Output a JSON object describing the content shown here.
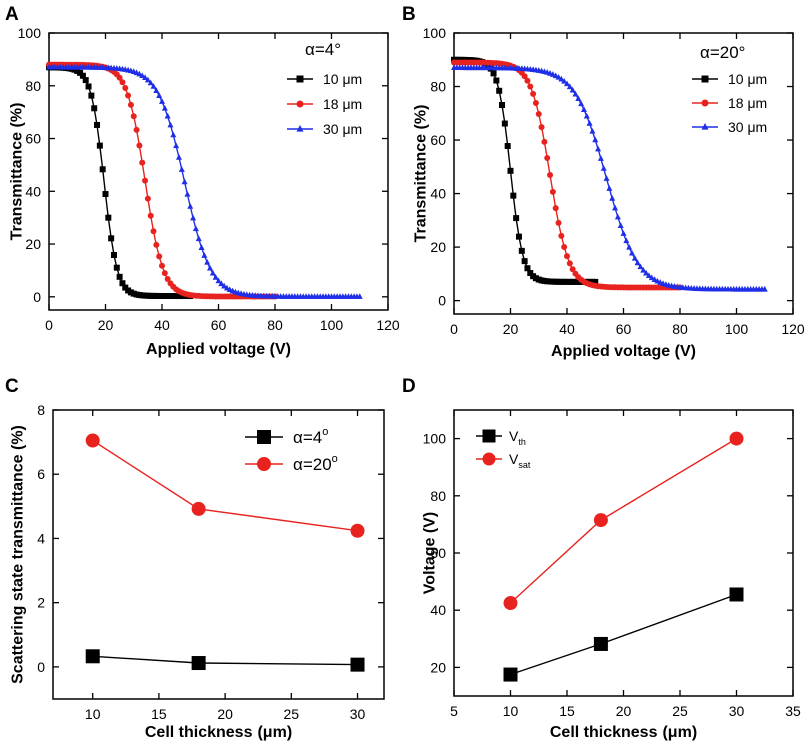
{
  "chart_data": [
    {
      "type": "line",
      "panel": "A",
      "annotation": "α=4°",
      "xlabel": "Applied voltage (V)",
      "ylabel": "Transmittance (%)",
      "xlim": [
        0,
        120
      ],
      "ylim": [
        -5,
        100
      ],
      "xticks": [
        0,
        20,
        40,
        60,
        80,
        100,
        120
      ],
      "yticks": [
        0,
        20,
        40,
        60,
        80,
        100
      ],
      "legend_position": "top-right",
      "series": [
        {
          "name": "10 μm",
          "color": "#000000",
          "marker": "square",
          "Tmax": 87,
          "Tmin": 0.3,
          "V50": 19.5,
          "slope": 2.3,
          "vstart": 0,
          "vend": 50
        },
        {
          "name": "18 μm",
          "color": "#e8231f",
          "marker": "circle",
          "Tmax": 88,
          "Tmin": 0.1,
          "V50": 34,
          "slope": 3.2,
          "vstart": 0,
          "vend": 80
        },
        {
          "name": "30 μm",
          "color": "#1f2fe8",
          "marker": "triangle",
          "Tmax": 87,
          "Tmin": 0.05,
          "V50": 48,
          "slope": 4.6,
          "vstart": 0,
          "vend": 110
        }
      ]
    },
    {
      "type": "line",
      "panel": "B",
      "annotation": "α=20°",
      "xlabel": "Applied voltage (V)",
      "ylabel": "Transmittance (%)",
      "xlim": [
        0,
        120
      ],
      "ylim": [
        -5,
        100
      ],
      "xticks": [
        0,
        20,
        40,
        60,
        80,
        100,
        120
      ],
      "yticks": [
        0,
        20,
        40,
        60,
        80,
        100
      ],
      "legend_position": "top-right",
      "series": [
        {
          "name": "10 μm",
          "color": "#000000",
          "marker": "square",
          "Tmax": 90,
          "Tmin": 7,
          "V50": 20,
          "slope": 2.2,
          "vstart": 0,
          "vend": 50
        },
        {
          "name": "18 μm",
          "color": "#e8231f",
          "marker": "circle",
          "Tmax": 89,
          "Tmin": 4.9,
          "V50": 34,
          "slope": 3.3,
          "vstart": 0,
          "vend": 80
        },
        {
          "name": "30 μm",
          "color": "#1f2fe8",
          "marker": "triangle",
          "Tmax": 87,
          "Tmin": 4.2,
          "V50": 54,
          "slope": 5.5,
          "vstart": 0,
          "vend": 110
        }
      ]
    },
    {
      "type": "line",
      "panel": "C",
      "xlabel": "Cell thickness",
      "xunit": "(μm)",
      "ylabel": "Scattering state transmittance (%)",
      "xlim": [
        7,
        32
      ],
      "ylim": [
        -1,
        8
      ],
      "xticks": [
        10,
        15,
        20,
        25,
        30
      ],
      "yticks": [
        0,
        2,
        4,
        6,
        8
      ],
      "legend_position": "top-right",
      "x": [
        10,
        18,
        30
      ],
      "series": [
        {
          "name": "α=4",
          "sup": "o",
          "color": "#000000",
          "marker": "square",
          "values": [
            0.33,
            0.12,
            0.07
          ]
        },
        {
          "name": "α=20",
          "sup": "o",
          "color": "#e8231f",
          "marker": "circle",
          "values": [
            7.05,
            4.92,
            4.24
          ]
        }
      ]
    },
    {
      "type": "line",
      "panel": "D",
      "xlabel": "Cell thickness",
      "xunit": "(μm)",
      "ylabel": "Voltage (V)",
      "xlim": [
        5,
        35
      ],
      "ylim": [
        10,
        110
      ],
      "xticks": [
        5,
        10,
        15,
        20,
        25,
        30,
        35
      ],
      "yticks": [
        20,
        40,
        60,
        80,
        100
      ],
      "legend_position": "top-left",
      "x": [
        10,
        18,
        30
      ],
      "series": [
        {
          "name": "V",
          "sub": "th",
          "color": "#000000",
          "marker": "square",
          "values": [
            17.5,
            28.2,
            45.5
          ]
        },
        {
          "name": "V",
          "sub": "sat",
          "color": "#e8231f",
          "marker": "circle",
          "values": [
            42.5,
            71.5,
            100
          ]
        }
      ]
    }
  ]
}
